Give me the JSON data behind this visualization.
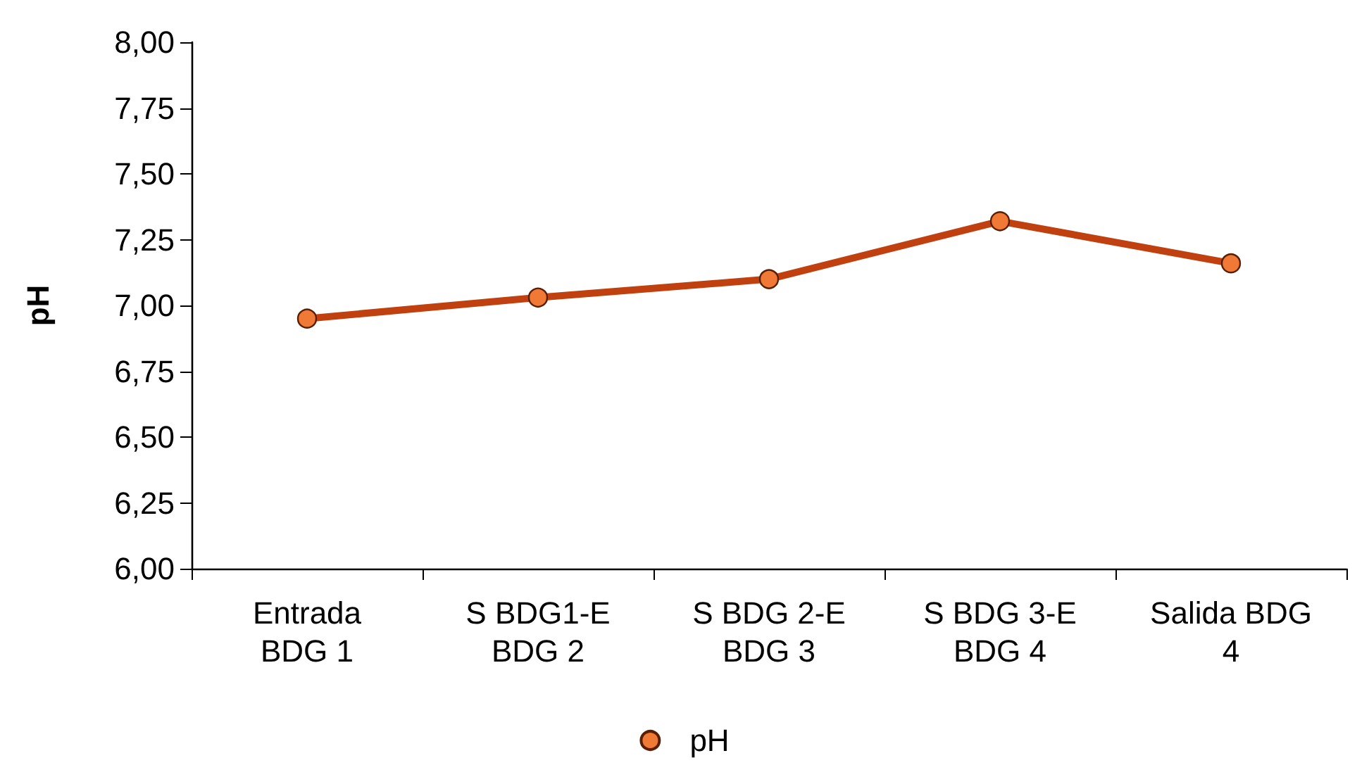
{
  "chart_data": {
    "type": "line",
    "ylabel": "pH",
    "categories": [
      "Entrada\nBDG 1",
      "S BDG1-E\nBDG 2",
      "S BDG 2-E\nBDG 3",
      "S BDG 3-E\nBDG 4",
      "Salida BDG\n4"
    ],
    "series": [
      {
        "name": "pH",
        "color": "#c0400f",
        "values": [
          6.95,
          7.03,
          7.1,
          7.32,
          7.16
        ]
      }
    ],
    "ylim": [
      6,
      8
    ],
    "yticks": [
      {
        "value": 6,
        "label": "6,00"
      },
      {
        "value": 6.25,
        "label": "6,25"
      },
      {
        "value": 6.5,
        "label": "6,50"
      },
      {
        "value": 6.75,
        "label": "6,75"
      },
      {
        "value": 7,
        "label": "7,00"
      },
      {
        "value": 7.25,
        "label": "7,25"
      },
      {
        "value": 7.5,
        "label": "7,50"
      },
      {
        "value": 7.75,
        "label": "7,75"
      },
      {
        "value": 8,
        "label": "8,00"
      }
    ],
    "grid": false,
    "legend": "bottom",
    "marker": "circle",
    "line_style": "solid"
  }
}
